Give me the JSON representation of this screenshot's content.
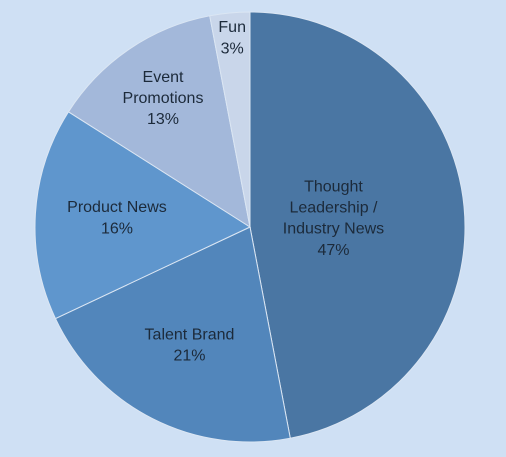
{
  "chart_data": {
    "type": "pie",
    "categories": [
      "Thought Leadership / Industry News",
      "Talent Brand",
      "Product News",
      "Event Promotions",
      "Fun"
    ],
    "values": [
      47,
      21,
      16,
      13,
      3
    ],
    "value_labels": [
      "47%",
      "21%",
      "16%",
      "13%",
      "3%"
    ],
    "colors": [
      "#4a76a3",
      "#5286bb",
      "#5f96cd",
      "#a3b8da",
      "#c9d6ea"
    ]
  }
}
